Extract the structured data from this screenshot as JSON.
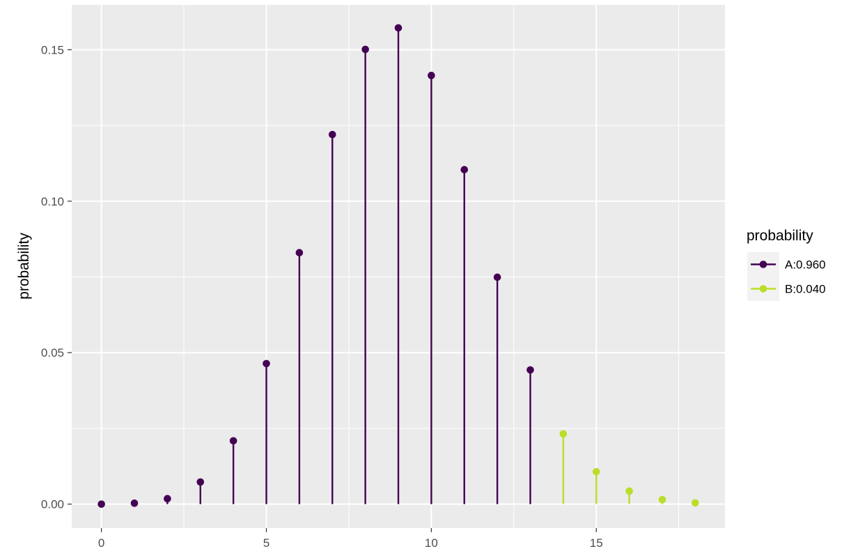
{
  "chart_data": {
    "type": "lollipop",
    "ylabel": "probability",
    "xlim": [
      -0.9,
      18.9
    ],
    "ylim": [
      -0.0079,
      0.1648
    ],
    "x_ticks": [
      0,
      5,
      10,
      15
    ],
    "x_tick_labels": [
      "0",
      "5",
      "10",
      "15"
    ],
    "y_ticks": [
      0.0,
      0.05,
      0.1,
      0.15
    ],
    "y_tick_labels": [
      "0.00",
      "0.05",
      "0.10",
      "0.15"
    ],
    "grid": true,
    "legend": {
      "title": "probability",
      "placement": "right"
    },
    "series": [
      {
        "name": "A:0.960",
        "color": "#440154",
        "points": [
          {
            "x": 0,
            "y": 0.0
          },
          {
            "x": 1,
            "y": 0.0003
          },
          {
            "x": 2,
            "y": 0.0018
          },
          {
            "x": 3,
            "y": 0.0073
          },
          {
            "x": 4,
            "y": 0.0209
          },
          {
            "x": 5,
            "y": 0.0464
          },
          {
            "x": 6,
            "y": 0.083
          },
          {
            "x": 7,
            "y": 0.122
          },
          {
            "x": 8,
            "y": 0.1501
          },
          {
            "x": 9,
            "y": 0.1572
          },
          {
            "x": 10,
            "y": 0.1415
          },
          {
            "x": 11,
            "y": 0.1104
          },
          {
            "x": 12,
            "y": 0.0749
          },
          {
            "x": 13,
            "y": 0.0443
          }
        ]
      },
      {
        "name": "B:0.040",
        "color": "#BADE28",
        "points": [
          {
            "x": 14,
            "y": 0.0232
          },
          {
            "x": 15,
            "y": 0.0107
          },
          {
            "x": 16,
            "y": 0.0043
          },
          {
            "x": 17,
            "y": 0.0015
          },
          {
            "x": 18,
            "y": 0.0004
          }
        ]
      }
    ]
  }
}
